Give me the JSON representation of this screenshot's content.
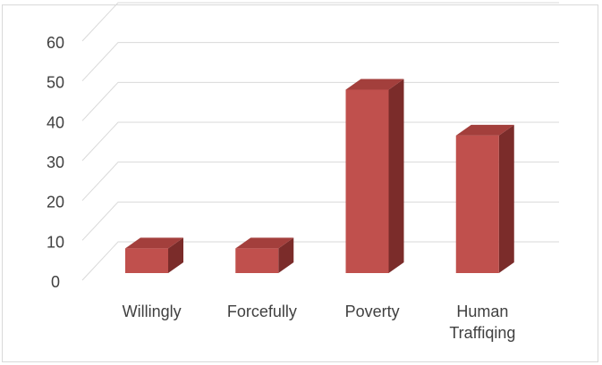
{
  "chart_data": {
    "type": "bar",
    "style": "3d-column",
    "categories": [
      [
        "Willingly"
      ],
      [
        "Forcefully"
      ],
      [
        "Poverty"
      ],
      [
        "Human",
        "Traffiqing"
      ]
    ],
    "values": [
      7,
      7,
      52,
      39
    ],
    "ylim": [
      0,
      60
    ],
    "yticks": [
      0,
      10,
      20,
      30,
      40,
      50,
      60
    ],
    "title": "",
    "xlabel": "",
    "ylabel": "",
    "grid": true,
    "legend": "none",
    "colors": {
      "bar_front": "#c0504d",
      "bar_top": "#a33f3c",
      "bar_side": "#7b2c2a",
      "grid": "#d9d9d9",
      "text": "#404040"
    }
  }
}
